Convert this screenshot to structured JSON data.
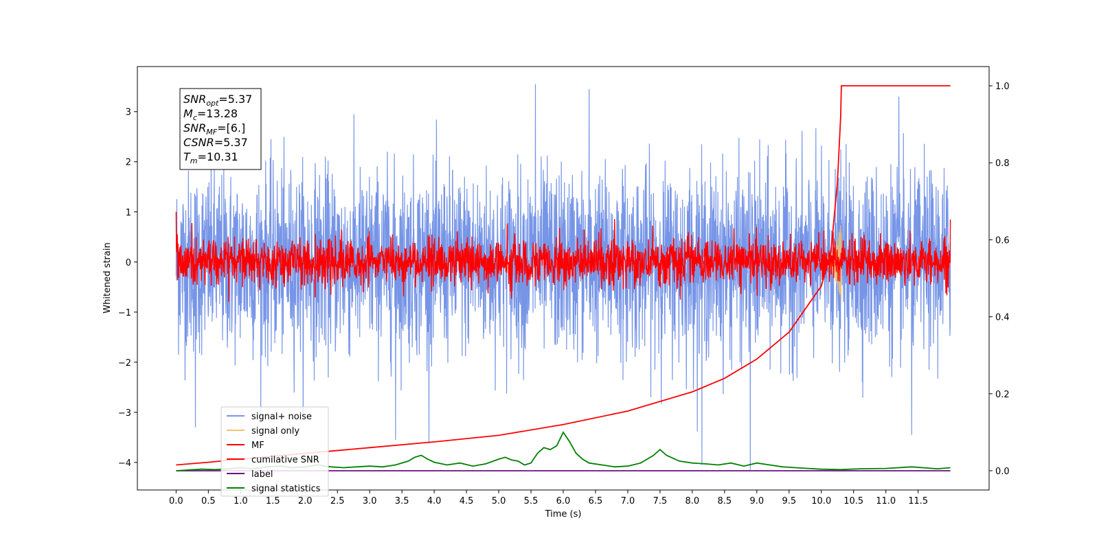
{
  "chart_data": {
    "type": "line",
    "xlabel": "Time (s)",
    "ylabel": "Whitened strain",
    "xlim": [
      -0.6,
      12.6
    ],
    "ylim_left": [
      -4.55,
      3.9
    ],
    "ylim_right": [
      -0.05,
      1.05
    ],
    "x_ticks": [
      0.0,
      0.5,
      1.0,
      1.5,
      2.0,
      2.5,
      3.0,
      3.5,
      4.0,
      4.5,
      5.0,
      5.5,
      6.0,
      6.5,
      7.0,
      7.5,
      8.0,
      8.5,
      9.0,
      9.5,
      10.0,
      10.5,
      11.0,
      11.5
    ],
    "x_tick_labels": [
      "0.0",
      "0.5",
      "1.0",
      "1.5",
      "2.0",
      "2.5",
      "3.0",
      "3.5",
      "4.0",
      "4.5",
      "5.0",
      "5.5",
      "6.0",
      "6.5",
      "7.0",
      "7.5",
      "8.0",
      "8.5",
      "9.0",
      "9.5",
      "10.0",
      "10.5",
      "11.0",
      "11.5"
    ],
    "y_left_ticks": [
      3,
      2,
      1,
      0,
      -1,
      -2,
      -3,
      -4
    ],
    "y_left_tick_labels": [
      "3",
      "2",
      "1",
      "0",
      "−1",
      "−2",
      "−3",
      "−4"
    ],
    "y_right_ticks": [
      1.0,
      0.8,
      0.6,
      0.4,
      0.2,
      0.0
    ],
    "y_right_tick_labels": [
      "1.0",
      "0.8",
      "0.6",
      "0.4",
      "0.2",
      "0.0"
    ],
    "grid": false,
    "legend_placement": "lower-left",
    "series": [
      {
        "name": "signal+ noise",
        "color": "#6f8fe6",
        "axis": "left",
        "kind": "noise",
        "x_range": [
          0.0,
          12.0
        ],
        "typical_amplitude": 1.0,
        "extreme_points": [
          {
            "x": 5.57,
            "y": 3.55
          },
          {
            "x": 6.4,
            "y": 3.45
          },
          {
            "x": 11.2,
            "y": 3.3
          },
          {
            "x": 3.4,
            "y": -3.55
          },
          {
            "x": 8.15,
            "y": -4.05
          },
          {
            "x": 8.9,
            "y": -4.15
          },
          {
            "x": 11.4,
            "y": -3.45
          },
          {
            "x": 0.3,
            "y": -3.3
          }
        ]
      },
      {
        "name": "signal only",
        "color": "#f5c46b",
        "axis": "left",
        "kind": "chirp",
        "x_range": [
          9.9,
          10.31
        ],
        "peak_amplitude": 0.8
      },
      {
        "name": "MF",
        "color": "#ff0000",
        "axis": "left",
        "kind": "noise",
        "x_range": [
          0.0,
          12.0
        ],
        "typical_amplitude": 0.25,
        "start_value": 1.0,
        "end_value": 0.85
      },
      {
        "name": "cumilative SNR",
        "color": "#ff0000",
        "axis": "right",
        "x": [
          0.0,
          0.5,
          1.0,
          2.0,
          3.0,
          4.0,
          5.0,
          6.0,
          7.0,
          8.0,
          8.5,
          9.0,
          9.5,
          10.0,
          10.15,
          10.25,
          10.3,
          10.31,
          12.0
        ],
        "y": [
          0.015,
          0.022,
          0.03,
          0.045,
          0.06,
          0.075,
          0.092,
          0.12,
          0.155,
          0.205,
          0.24,
          0.29,
          0.36,
          0.48,
          0.57,
          0.75,
          0.92,
          1.0,
          1.0
        ]
      },
      {
        "name": "label",
        "color": "#6a0d83",
        "axis": "right",
        "x": [
          0.0,
          12.0
        ],
        "y": [
          0.0,
          0.0
        ]
      },
      {
        "name": "signal statistics",
        "color": "#008000",
        "axis": "right",
        "x": [
          0.0,
          0.2,
          0.4,
          0.6,
          0.8,
          1.0,
          1.2,
          1.4,
          1.6,
          1.8,
          2.0,
          2.2,
          2.4,
          2.6,
          2.8,
          3.0,
          3.2,
          3.4,
          3.6,
          3.7,
          3.8,
          3.9,
          4.0,
          4.2,
          4.4,
          4.6,
          4.8,
          5.0,
          5.1,
          5.2,
          5.3,
          5.4,
          5.5,
          5.6,
          5.7,
          5.8,
          5.9,
          6.0,
          6.1,
          6.2,
          6.3,
          6.4,
          6.6,
          6.8,
          7.0,
          7.2,
          7.4,
          7.5,
          7.6,
          7.8,
          8.0,
          8.2,
          8.4,
          8.6,
          8.8,
          9.0,
          9.2,
          9.4,
          9.6,
          9.8,
          10.0,
          10.3,
          10.6,
          11.0,
          11.4,
          11.8,
          12.0
        ],
        "y": [
          0.0,
          0.002,
          0.004,
          0.003,
          0.005,
          0.008,
          0.005,
          0.01,
          0.012,
          0.008,
          0.01,
          0.015,
          0.01,
          0.008,
          0.01,
          0.012,
          0.01,
          0.015,
          0.025,
          0.035,
          0.04,
          0.03,
          0.022,
          0.015,
          0.02,
          0.012,
          0.018,
          0.03,
          0.035,
          0.028,
          0.025,
          0.015,
          0.02,
          0.045,
          0.06,
          0.055,
          0.065,
          0.1,
          0.075,
          0.045,
          0.03,
          0.02,
          0.015,
          0.01,
          0.012,
          0.02,
          0.04,
          0.055,
          0.04,
          0.025,
          0.02,
          0.018,
          0.015,
          0.02,
          0.012,
          0.02,
          0.015,
          0.01,
          0.008,
          0.006,
          0.004,
          0.003,
          0.005,
          0.006,
          0.01,
          0.005,
          0.008
        ]
      }
    ],
    "annotation_lines": [
      {
        "base": "SNR",
        "sub": "opt",
        "value": "=5.37"
      },
      {
        "base": "M",
        "sub": "c",
        "value": "=13.28"
      },
      {
        "base": "SNR",
        "sub": "MF",
        "value": "=[6.]"
      },
      {
        "base": "CSNR",
        "sub": "",
        "value": "=5.37"
      },
      {
        "base": "T",
        "sub": "m",
        "value": "=10.31"
      }
    ]
  }
}
